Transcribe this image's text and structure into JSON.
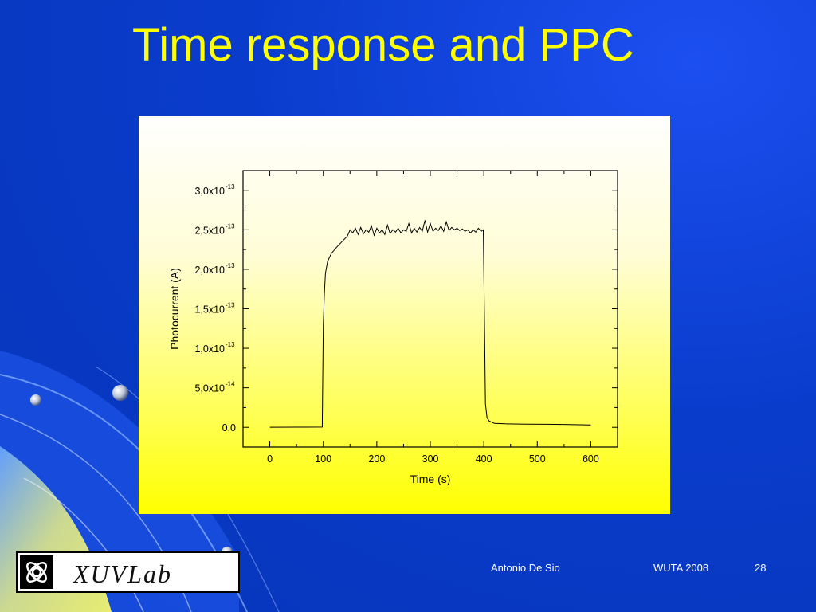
{
  "slide": {
    "title": "Time response and PPC",
    "footer": {
      "author": "Antonio De Sio",
      "event": "WUTA 2008",
      "page": "28"
    },
    "logo": {
      "text": "XUVLab",
      "icon": "celtic-knot-icon"
    }
  },
  "colors": {
    "background": "#0a3fcc",
    "title": "#ffff00",
    "footer_text": "#ffffff",
    "trace": "#000000"
  },
  "chart_data": {
    "type": "line",
    "title": "",
    "xlabel": "Time (s)",
    "ylabel": "Photocurrent (A)",
    "xlim": [
      -50,
      650
    ],
    "ylim": [
      -2.5e-14,
      3.25e-13
    ],
    "xticks": [
      0,
      100,
      200,
      300,
      400,
      500,
      600
    ],
    "xtick_labels": [
      "0",
      "100",
      "200",
      "300",
      "400",
      "500",
      "600"
    ],
    "yticks": [
      0,
      5e-14,
      1e-13,
      1.5e-13,
      2e-13,
      2.5e-13,
      3e-13
    ],
    "ytick_labels": [
      {
        "mantissa": "0,0",
        "exp": ""
      },
      {
        "mantissa": "5,0x10",
        "exp": "-14"
      },
      {
        "mantissa": "1,0x10",
        "exp": "-13"
      },
      {
        "mantissa": "1,5x10",
        "exp": "-13"
      },
      {
        "mantissa": "2,0x10",
        "exp": "-13"
      },
      {
        "mantissa": "2,5x10",
        "exp": "-13"
      },
      {
        "mantissa": "3,0x10",
        "exp": "-13"
      }
    ],
    "grid": false,
    "series": [
      {
        "x": [
          0,
          50,
          98,
          100,
          102,
          104,
          108,
          115,
          125,
          135,
          145,
          150,
          155,
          160,
          165,
          170,
          175,
          180,
          185,
          190,
          195,
          200,
          205,
          210,
          215,
          220,
          225,
          230,
          235,
          240,
          245,
          250,
          255,
          260,
          265,
          270,
          275,
          280,
          285,
          290,
          295,
          300,
          305,
          310,
          315,
          320,
          325,
          330,
          335,
          340,
          345,
          350,
          355,
          360,
          365,
          370,
          375,
          380,
          385,
          390,
          395,
          399,
          401,
          403,
          406,
          410,
          420,
          440,
          480,
          520,
          560,
          600
        ],
        "y": [
          1e-16,
          2e-16,
          3e-16,
          1.3e-13,
          1.7e-13,
          1.95e-13,
          2.1e-13,
          2.2e-13,
          2.28e-13,
          2.35e-13,
          2.42e-13,
          2.5e-13,
          2.46e-13,
          2.52e-13,
          2.44e-13,
          2.53e-13,
          2.45e-13,
          2.5e-13,
          2.47e-13,
          2.55e-13,
          2.43e-13,
          2.52e-13,
          2.46e-13,
          2.5e-13,
          2.44e-13,
          2.56e-13,
          2.45e-13,
          2.5e-13,
          2.47e-13,
          2.52e-13,
          2.46e-13,
          2.5e-13,
          2.48e-13,
          2.58e-13,
          2.46e-13,
          2.52e-13,
          2.47e-13,
          2.53e-13,
          2.48e-13,
          2.62e-13,
          2.47e-13,
          2.58e-13,
          2.48e-13,
          2.52e-13,
          2.49e-13,
          2.55e-13,
          2.48e-13,
          2.6e-13,
          2.49e-13,
          2.53e-13,
          2.5e-13,
          2.52e-13,
          2.49e-13,
          2.51e-13,
          2.48e-13,
          2.5e-13,
          2.46e-13,
          2.5e-13,
          2.47e-13,
          2.52e-13,
          2.48e-13,
          2.5e-13,
          1.5e-13,
          3e-14,
          1.2e-14,
          8e-15,
          5e-15,
          4.5e-15,
          4e-15,
          3.8e-15,
          3.5e-15,
          3e-15
        ]
      }
    ]
  }
}
